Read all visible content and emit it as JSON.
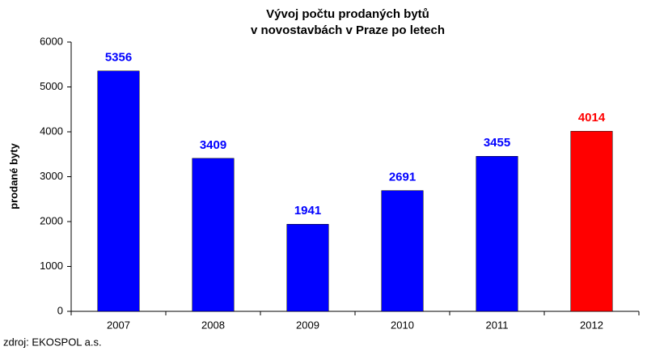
{
  "chart_data": {
    "type": "bar",
    "title": [
      "Vývoj počtu prodaných bytů",
      "v novostavbách v Praze po letech"
    ],
    "y_label": "prodané byty",
    "source": "zdroj: EKOSPOL a.s.",
    "categories": [
      "2007",
      "2008",
      "2009",
      "2010",
      "2011",
      "2012"
    ],
    "values": [
      5356,
      3409,
      1941,
      2691,
      3455,
      4014
    ],
    "colors": [
      "#0000ff",
      "#0000ff",
      "#0000ff",
      "#0000ff",
      "#0000ff",
      "#ff0000"
    ],
    "ylim": [
      0,
      6000
    ],
    "yticks": [
      0,
      1000,
      2000,
      3000,
      4000,
      5000,
      6000
    ],
    "grid": false
  }
}
